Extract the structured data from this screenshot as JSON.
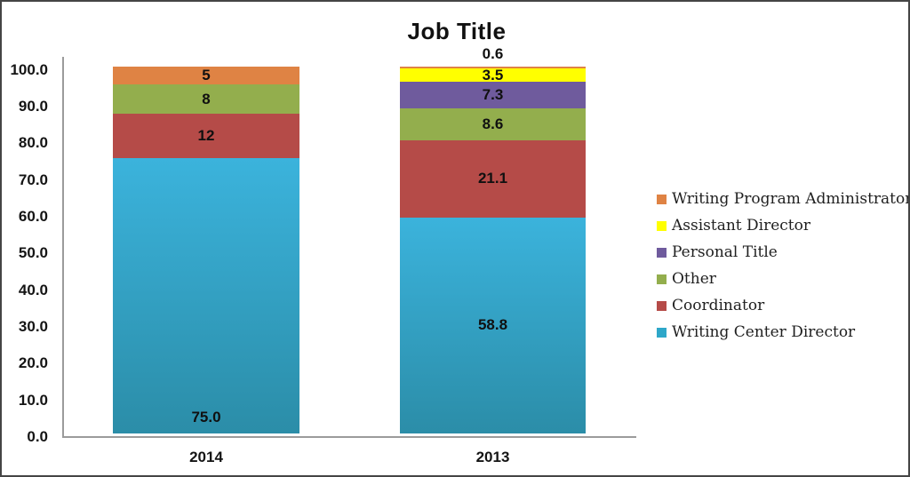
{
  "chart_data": {
    "type": "bar",
    "stacked": true,
    "title": "Job Title",
    "categories": [
      "2014",
      "2013"
    ],
    "series": [
      {
        "name": "Writing Center Director",
        "color": "#2EA7C9",
        "gradient": [
          "#3BB3DC",
          "#2B8DA8"
        ],
        "values": [
          75.0,
          58.8
        ],
        "labels": [
          "75.0",
          "58.8"
        ],
        "label_positions": [
          "inside-bottom",
          "center"
        ]
      },
      {
        "name": "Coordinator",
        "color": "#B54B48",
        "values": [
          12,
          21.1
        ],
        "labels": [
          "12",
          "21.1"
        ],
        "label_positions": [
          "center",
          "center"
        ]
      },
      {
        "name": "Other",
        "color": "#93AE4D",
        "values": [
          8,
          8.6
        ],
        "labels": [
          "8",
          "8.6"
        ],
        "label_positions": [
          "center",
          "center"
        ]
      },
      {
        "name": "Personal Title",
        "color": "#6F5B9D",
        "values": [
          0,
          7.3
        ],
        "labels": [
          "",
          "7.3"
        ],
        "label_positions": [
          "center",
          "center"
        ]
      },
      {
        "name": "Assistant Director",
        "color": "#FFFF00",
        "values": [
          0,
          3.5
        ],
        "labels": [
          "",
          "3.5"
        ],
        "label_positions": [
          "center",
          "center"
        ]
      },
      {
        "name": "Writing Program Administrator",
        "color": "#DF8344",
        "values": [
          5,
          0.6
        ],
        "labels": [
          "5",
          "0.6"
        ],
        "label_positions": [
          "center",
          "above"
        ]
      }
    ],
    "ylim": [
      0,
      100
    ],
    "y_ticks": [
      "0.0",
      "10.0",
      "20.0",
      "30.0",
      "40.0",
      "50.0",
      "60.0",
      "70.0",
      "80.0",
      "90.0",
      "100.0"
    ],
    "legend_position": "right",
    "legend_order": "reverse-of-stack",
    "grid": "off"
  }
}
